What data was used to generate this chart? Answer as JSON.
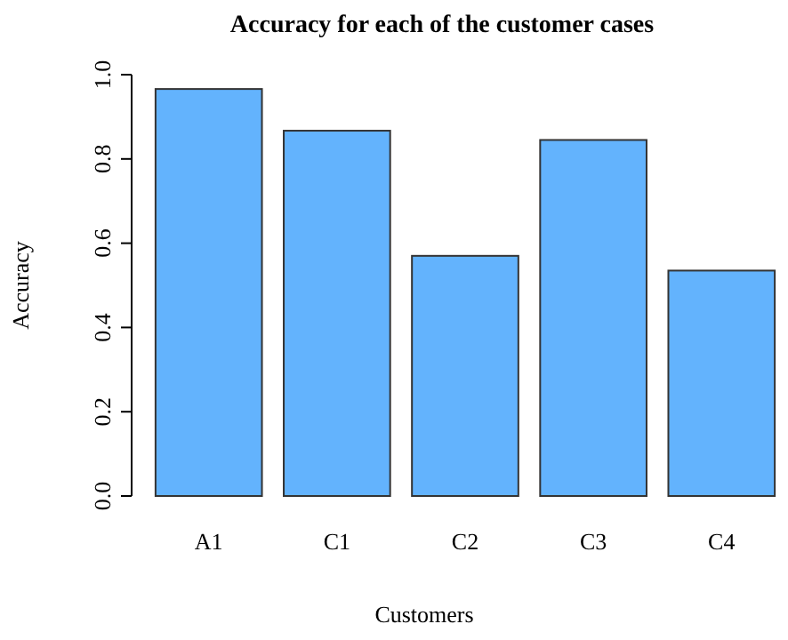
{
  "chart_data": {
    "type": "bar",
    "title": "Accuracy for each of the customer cases",
    "xlabel": "Customers",
    "ylabel": "Accuracy",
    "categories": [
      "A1",
      "C1",
      "C2",
      "C3",
      "C4"
    ],
    "values": [
      0.966,
      0.867,
      0.57,
      0.845,
      0.535
    ],
    "color": "#63b3fd",
    "ylim": [
      0,
      1
    ],
    "yticks": [
      {
        "value": 0,
        "label": "0.0"
      },
      {
        "value": 0.2,
        "label": "0.2"
      },
      {
        "value": 0.4,
        "label": "0.4"
      },
      {
        "value": 0.6,
        "label": "0.6"
      },
      {
        "value": 0.8,
        "label": "0.8"
      },
      {
        "value": 1,
        "label": "1.0"
      }
    ],
    "grid": false
  }
}
